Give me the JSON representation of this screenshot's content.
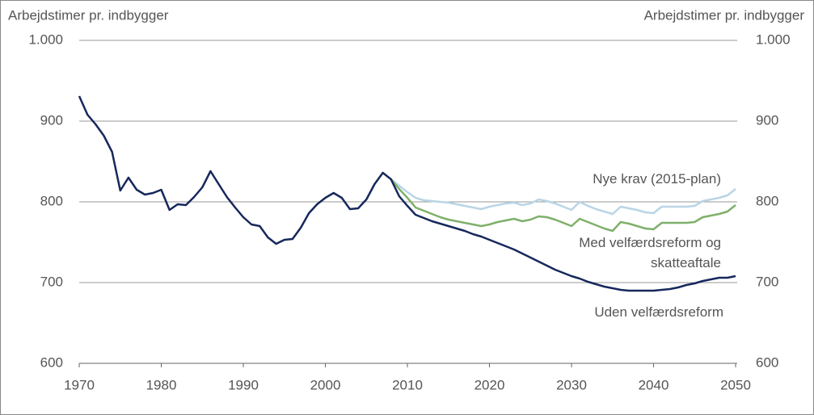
{
  "chart_data": {
    "type": "line",
    "y_label": "Arbejdstimer pr. indbygger",
    "y2_label": "Arbejdstimer pr. indbygger",
    "x": [
      1970,
      1971,
      1972,
      1973,
      1974,
      1975,
      1976,
      1977,
      1978,
      1979,
      1980,
      1981,
      1982,
      1983,
      1984,
      1985,
      1986,
      1987,
      1988,
      1989,
      1990,
      1991,
      1992,
      1993,
      1994,
      1995,
      1996,
      1997,
      1998,
      1999,
      2000,
      2001,
      2002,
      2003,
      2004,
      2005,
      2006,
      2007,
      2008,
      2009,
      2010,
      2011,
      2012,
      2013,
      2014,
      2015,
      2016,
      2017,
      2018,
      2019,
      2020,
      2021,
      2022,
      2023,
      2024,
      2025,
      2026,
      2027,
      2028,
      2029,
      2030,
      2031,
      2032,
      2033,
      2034,
      2035,
      2036,
      2037,
      2038,
      2039,
      2040,
      2041,
      2042,
      2043,
      2044,
      2045,
      2046,
      2047,
      2048,
      2049,
      2050
    ],
    "series": [
      {
        "name": "Uden velfærdsreform",
        "color": "#16285c",
        "values": [
          931,
          908,
          896,
          882,
          862,
          814,
          830,
          815,
          809,
          811,
          815,
          790,
          797,
          796,
          806,
          818,
          838,
          822,
          806,
          793,
          781,
          772,
          770,
          756,
          748,
          753,
          754,
          768,
          786,
          797,
          805,
          811,
          805,
          791,
          792,
          803,
          822,
          836,
          828,
          807,
          795,
          784,
          780,
          776,
          773,
          770,
          767,
          764,
          760,
          757,
          753,
          749,
          745,
          741,
          736,
          731,
          726,
          721,
          716,
          712,
          708,
          705,
          701,
          698,
          695,
          693,
          691,
          690,
          690,
          690,
          690,
          691,
          692,
          694,
          697,
          699,
          702,
          704,
          706,
          706,
          708
        ]
      },
      {
        "name": "Med velfærdsreform og skatteaftale",
        "color": "#7fb06a",
        "values": [
          null,
          null,
          null,
          null,
          null,
          null,
          null,
          null,
          null,
          null,
          null,
          null,
          null,
          null,
          null,
          null,
          null,
          null,
          null,
          null,
          null,
          null,
          null,
          null,
          null,
          null,
          null,
          null,
          null,
          null,
          null,
          null,
          null,
          null,
          null,
          null,
          null,
          null,
          828,
          816,
          805,
          793,
          789,
          785,
          781,
          778,
          776,
          774,
          772,
          770,
          772,
          775,
          777,
          779,
          776,
          778,
          782,
          781,
          778,
          774,
          770,
          779,
          775,
          771,
          767,
          764,
          775,
          773,
          770,
          767,
          766,
          774,
          774,
          774,
          774,
          775,
          781,
          783,
          785,
          788,
          796
        ]
      },
      {
        "name": "Nye krav (2015-plan)",
        "color": "#b9d5e6",
        "values": [
          null,
          null,
          null,
          null,
          null,
          null,
          null,
          null,
          null,
          null,
          null,
          null,
          null,
          null,
          null,
          null,
          null,
          null,
          null,
          null,
          null,
          null,
          null,
          null,
          null,
          null,
          null,
          null,
          null,
          null,
          null,
          null,
          null,
          null,
          null,
          null,
          null,
          null,
          828,
          820,
          812,
          805,
          802,
          801,
          800,
          799,
          797,
          795,
          793,
          791,
          794,
          796,
          798,
          799,
          796,
          798,
          803,
          801,
          798,
          794,
          790,
          800,
          795,
          791,
          788,
          785,
          794,
          792,
          790,
          787,
          786,
          794,
          794,
          794,
          794,
          795,
          801,
          803,
          805,
          808,
          816
        ]
      }
    ],
    "xlim": [
      1970,
      2050
    ],
    "xticks": [
      1970,
      1980,
      1990,
      2000,
      2010,
      2020,
      2030,
      2040,
      2050
    ],
    "ylim": [
      600,
      1000
    ],
    "yticks": [
      600,
      700,
      800,
      900,
      {
        "value": 1000,
        "label": "1.000"
      }
    ],
    "y2lim": [
      600,
      1000
    ],
    "y2ticks": [
      600,
      700,
      800,
      900,
      {
        "value": 1000,
        "label": "1.000"
      }
    ],
    "grid": true
  }
}
